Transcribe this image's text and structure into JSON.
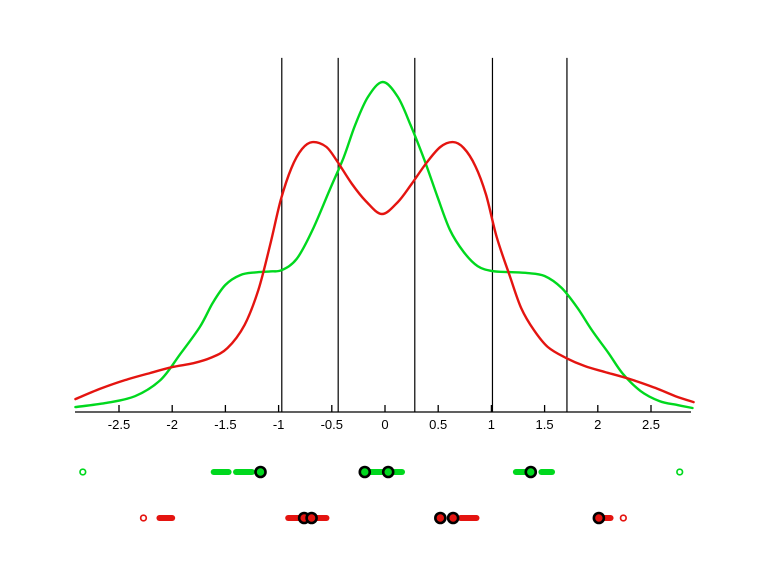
{
  "figure": {
    "background": "#ffffff",
    "colors": {
      "class_green": "#00d81e",
      "class_red": "#e41410",
      "axis": "#000000",
      "boundary_line": "#000000"
    }
  },
  "chart_data": {
    "type": "line",
    "title": "",
    "xlabel": "",
    "ylabel": "",
    "grid": false,
    "legend": null,
    "x_axis": {
      "range": [
        -2.92,
        2.92
      ],
      "tick_values": [
        -2.5,
        -2,
        -1.5,
        -1,
        -0.5,
        0,
        0.5,
        1,
        1.5,
        2,
        2.5
      ],
      "tick_labels": [
        "-2.5",
        "-2",
        "-1.5",
        "-1",
        "-0.5",
        "0",
        "0.5",
        "1",
        "1.5",
        "2",
        "2.5"
      ]
    },
    "y_axis": {
      "visible": false,
      "range": [
        0,
        1.073
      ]
    },
    "vertical_lines": {
      "x_values": [
        -0.97,
        -0.44,
        0.28,
        1.01,
        1.71
      ],
      "top": 1.073,
      "color": "#000000"
    },
    "series": [
      {
        "name": "green-density",
        "color": "#00d81e",
        "points": [
          [
            -2.91,
            0.015
          ],
          [
            -2.63,
            0.027
          ],
          [
            -2.35,
            0.048
          ],
          [
            -2.11,
            0.097
          ],
          [
            -1.93,
            0.173
          ],
          [
            -1.74,
            0.258
          ],
          [
            -1.62,
            0.33
          ],
          [
            -1.5,
            0.385
          ],
          [
            -1.36,
            0.415
          ],
          [
            -1.22,
            0.423
          ],
          [
            -1.08,
            0.426
          ],
          [
            -0.97,
            0.43
          ],
          [
            -0.83,
            0.464
          ],
          [
            -0.68,
            0.552
          ],
          [
            -0.52,
            0.673
          ],
          [
            -0.39,
            0.77
          ],
          [
            -0.28,
            0.87
          ],
          [
            -0.16,
            0.955
          ],
          [
            -0.02,
            1.0
          ],
          [
            0.12,
            0.955
          ],
          [
            0.24,
            0.87
          ],
          [
            0.37,
            0.764
          ],
          [
            0.49,
            0.655
          ],
          [
            0.61,
            0.552
          ],
          [
            0.74,
            0.485
          ],
          [
            0.87,
            0.442
          ],
          [
            1.01,
            0.427
          ],
          [
            1.17,
            0.424
          ],
          [
            1.34,
            0.421
          ],
          [
            1.5,
            0.412
          ],
          [
            1.66,
            0.376
          ],
          [
            1.81,
            0.315
          ],
          [
            1.95,
            0.245
          ],
          [
            2.1,
            0.179
          ],
          [
            2.23,
            0.118
          ],
          [
            2.4,
            0.064
          ],
          [
            2.58,
            0.033
          ],
          [
            2.75,
            0.021
          ],
          [
            2.89,
            0.012
          ]
        ]
      },
      {
        "name": "red-density",
        "color": "#e41410",
        "points": [
          [
            -2.91,
            0.039
          ],
          [
            -2.68,
            0.07
          ],
          [
            -2.44,
            0.097
          ],
          [
            -2.21,
            0.118
          ],
          [
            -2.0,
            0.136
          ],
          [
            -1.8,
            0.148
          ],
          [
            -1.64,
            0.164
          ],
          [
            -1.48,
            0.194
          ],
          [
            -1.32,
            0.264
          ],
          [
            -1.19,
            0.37
          ],
          [
            -1.08,
            0.506
          ],
          [
            -0.98,
            0.642
          ],
          [
            -0.88,
            0.739
          ],
          [
            -0.78,
            0.797
          ],
          [
            -0.68,
            0.818
          ],
          [
            -0.55,
            0.803
          ],
          [
            -0.44,
            0.755
          ],
          [
            -0.31,
            0.691
          ],
          [
            -0.18,
            0.639
          ],
          [
            -0.03,
            0.6
          ],
          [
            0.12,
            0.636
          ],
          [
            0.25,
            0.691
          ],
          [
            0.39,
            0.755
          ],
          [
            0.52,
            0.803
          ],
          [
            0.64,
            0.818
          ],
          [
            0.74,
            0.8
          ],
          [
            0.85,
            0.745
          ],
          [
            0.95,
            0.658
          ],
          [
            1.05,
            0.53
          ],
          [
            1.17,
            0.415
          ],
          [
            1.28,
            0.315
          ],
          [
            1.4,
            0.248
          ],
          [
            1.53,
            0.197
          ],
          [
            1.7,
            0.164
          ],
          [
            1.88,
            0.139
          ],
          [
            2.07,
            0.121
          ],
          [
            2.3,
            0.1
          ],
          [
            2.54,
            0.073
          ],
          [
            2.73,
            0.048
          ],
          [
            2.9,
            0.03
          ]
        ]
      }
    ],
    "rug_rows": [
      {
        "name": "green-samples",
        "color": "#00d81e",
        "open_points": [
          -2.84,
          2.77
        ],
        "cluster_bars": [
          [
            -1.61,
            -1.47
          ],
          [
            -1.4,
            -1.25
          ],
          [
            -0.14,
            -0.03
          ],
          [
            0.07,
            0.16
          ],
          [
            1.23,
            1.34
          ],
          [
            1.47,
            1.57
          ]
        ],
        "circled_points": [
          -1.17,
          -0.19,
          0.03,
          1.37
        ]
      },
      {
        "name": "red-samples",
        "color": "#e41410",
        "open_points": [
          -2.27,
          2.24
        ],
        "cluster_bars": [
          [
            -2.12,
            -2.0
          ],
          [
            -0.91,
            -0.8
          ],
          [
            -0.65,
            -0.55
          ],
          [
            0.71,
            0.86
          ],
          [
            2.04,
            2.12
          ]
        ],
        "circled_points": [
          -0.76,
          -0.69,
          0.52,
          0.64,
          2.01
        ]
      }
    ]
  }
}
